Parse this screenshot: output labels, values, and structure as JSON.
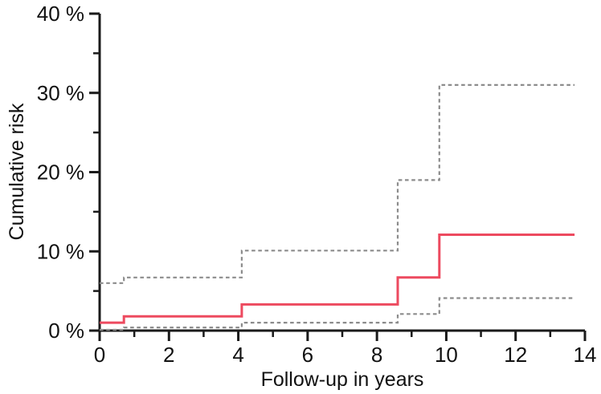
{
  "figure": {
    "background": "#ffffff",
    "axis_color": "#1a1a1a",
    "text_color": "#111111"
  },
  "chart_data": {
    "type": "line",
    "line_mode": "step-after",
    "title": "",
    "xlabel": "Follow-up in years",
    "ylabel": "Cumulative risk",
    "xlim": [
      0,
      14
    ],
    "ylim": [
      0,
      40
    ],
    "grid": false,
    "legend": "none",
    "x_major_ticks": [
      0,
      2,
      4,
      6,
      8,
      10,
      12,
      14
    ],
    "x_minor_ticks": [
      1,
      3,
      5,
      7,
      9,
      11,
      13
    ],
    "y_major_ticks": [
      0,
      10,
      20,
      30,
      40
    ],
    "y_minor_ticks": [
      5,
      15,
      25,
      35
    ],
    "y_tick_suffix": " %",
    "step_x": [
      0,
      0.7,
      4.1,
      8.6,
      9.8,
      13.7
    ],
    "series": [
      {
        "name": "upper-ci-dashed",
        "style": "dashed",
        "color": "#8c8c8c",
        "values": [
          6.0,
          6.7,
          10.1,
          19.0,
          31.0
        ]
      },
      {
        "name": "lower-ci-dashed",
        "style": "dashed",
        "color": "#8c8c8c",
        "values": [
          0.1,
          0.4,
          1.0,
          2.1,
          4.1
        ]
      },
      {
        "name": "estimate-solid",
        "style": "solid",
        "color": "#ed4a5f",
        "values": [
          1.0,
          1.8,
          3.3,
          6.7,
          12.1
        ]
      }
    ]
  }
}
